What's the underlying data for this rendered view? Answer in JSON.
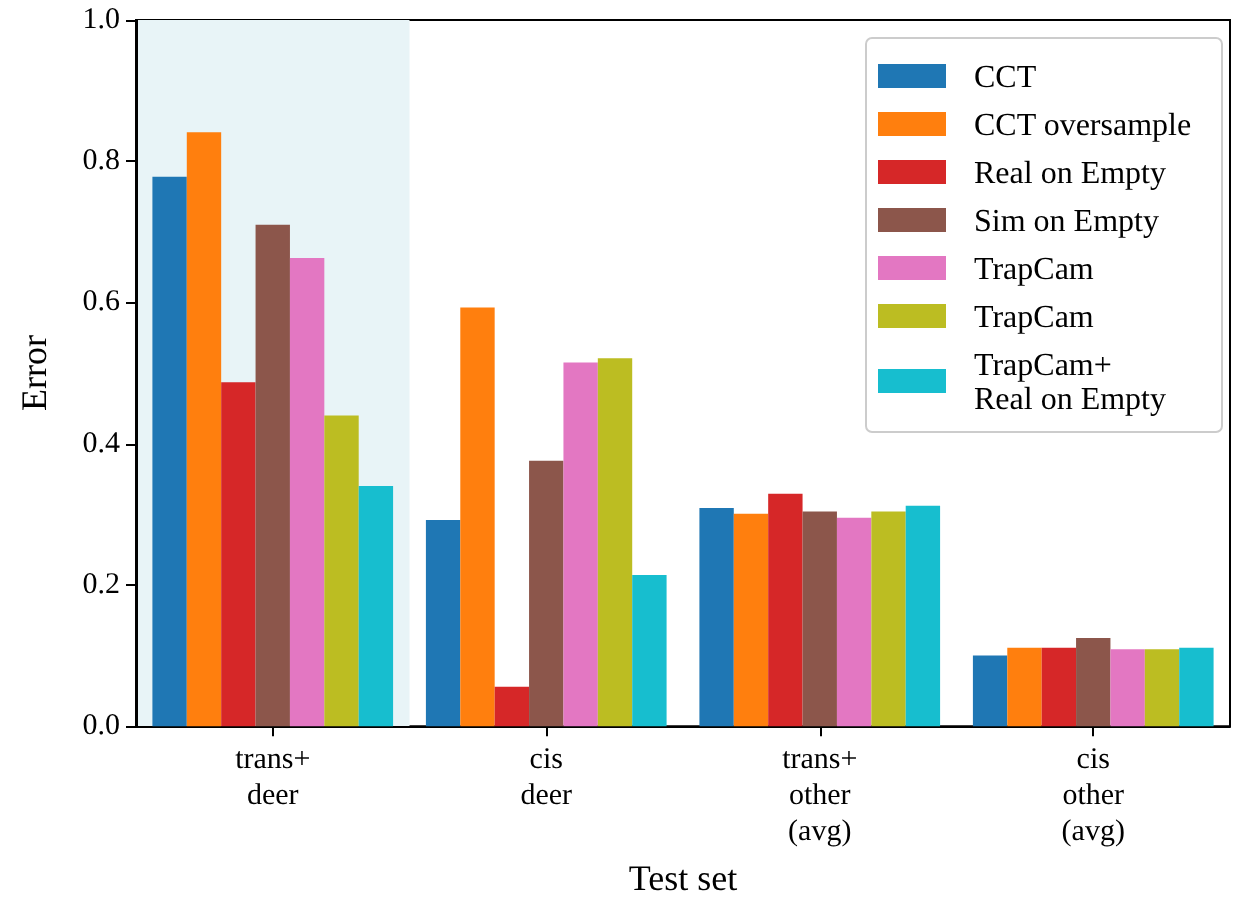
{
  "chart_data": {
    "type": "bar",
    "xlabel": "Test set",
    "ylabel": "Error",
    "categories": [
      "trans+\ndeer",
      "cis\ndeer",
      "trans+\nother\n(avg)",
      "cis\nother\n(avg)"
    ],
    "series": [
      {
        "name": "CCT",
        "color": "#1f77b4",
        "values": [
          0.778,
          0.292,
          0.309,
          0.1
        ]
      },
      {
        "name": "CCT oversample",
        "color": "#ff7f0e",
        "values": [
          0.841,
          0.593,
          0.301,
          0.111
        ]
      },
      {
        "name": "Real on Empty",
        "color": "#d62728",
        "values": [
          0.487,
          0.056,
          0.329,
          0.111
        ]
      },
      {
        "name": "Sim on Empty",
        "color": "#8c564b",
        "values": [
          0.71,
          0.376,
          0.304,
          0.125
        ]
      },
      {
        "name": "TrapCam",
        "color": "#e377c2",
        "values": [
          0.663,
          0.515,
          0.295,
          0.109
        ]
      },
      {
        "name": "TrapCam",
        "color": "#bcbd22",
        "values": [
          0.44,
          0.521,
          0.304,
          0.109
        ]
      },
      {
        "name": "TrapCam+\nReal on Empty",
        "color": "#17becf",
        "values": [
          0.34,
          0.214,
          0.312,
          0.111
        ]
      }
    ],
    "ylim": [
      0,
      1
    ],
    "yticks": [
      {
        "value": 0,
        "label": "0.0"
      },
      0.2,
      0.4,
      0.6,
      0.8,
      {
        "value": 1,
        "label": "1.0"
      }
    ],
    "bands": [
      {
        "axis": "x",
        "from": "trans+\ndeer",
        "to": "trans+\ndeer",
        "color": "#e8f4f7"
      }
    ],
    "grid": false,
    "legend": "top right"
  }
}
